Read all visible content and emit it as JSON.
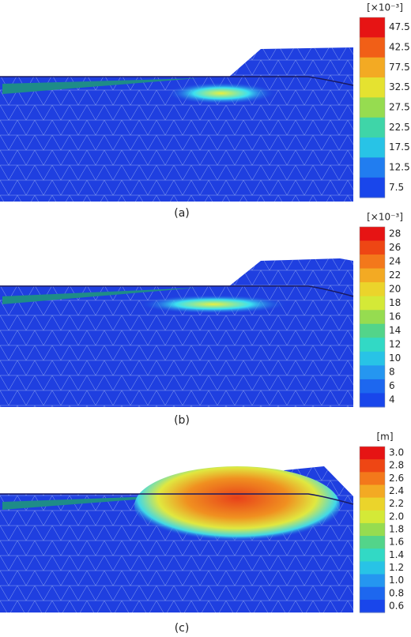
{
  "panels": [
    {
      "caption": "(a)",
      "unit": "[×10⁻³]",
      "labels": [
        "47.5",
        "42.5",
        "77.5",
        "32.5",
        "27.5",
        "22.5",
        "17.5",
        "12.5",
        "7.5"
      ]
    },
    {
      "caption": "(b)",
      "unit": "[×10⁻³]",
      "labels": [
        "28",
        "26",
        "24",
        "22",
        "20",
        "18",
        "16",
        "14",
        "12",
        "10",
        "8",
        "6",
        "4"
      ]
    },
    {
      "caption": "(c)",
      "unit": "[m]",
      "labels": [
        "3.0",
        "2.8",
        "2.6",
        "2.4",
        "2.2",
        "2.0",
        "1.8",
        "1.6",
        "1.4",
        "1.2",
        "1.0",
        "0.8",
        "0.6"
      ]
    }
  ]
}
